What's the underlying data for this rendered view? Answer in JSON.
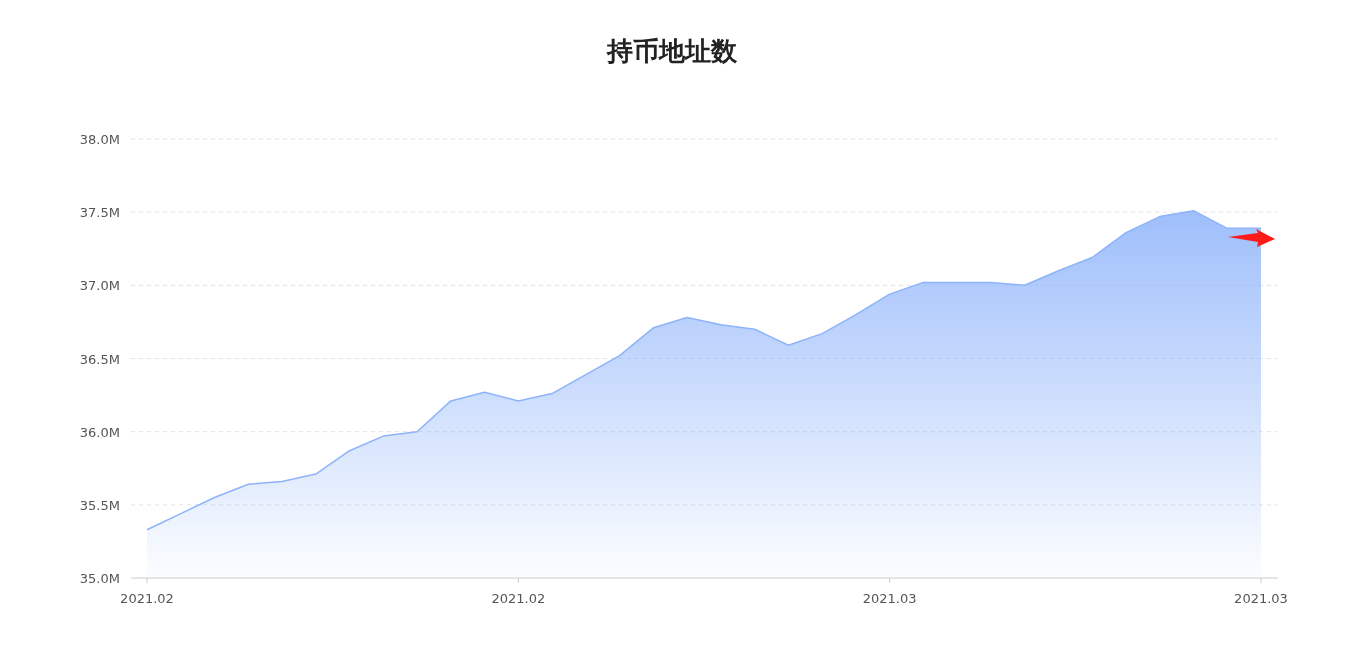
{
  "chart_data": {
    "type": "area",
    "title": "持币地址数",
    "categories": [
      "2021.02",
      null,
      null,
      null,
      null,
      null,
      null,
      null,
      null,
      null,
      null,
      "2021.02",
      null,
      null,
      null,
      null,
      null,
      null,
      null,
      null,
      null,
      null,
      "2021.03",
      null,
      null,
      null,
      null,
      null,
      null,
      null,
      null,
      null,
      null,
      "2021.03"
    ],
    "series": [
      {
        "color": "#8db3fa",
        "values": [
          35.33,
          35.44,
          35.55,
          35.64,
          35.66,
          35.71,
          35.87,
          35.97,
          36.0,
          36.21,
          36.27,
          36.21,
          36.26,
          36.39,
          36.52,
          36.71,
          36.78,
          36.73,
          36.7,
          36.59,
          36.67,
          36.8,
          36.94,
          37.02,
          37.02,
          37.02,
          37.0,
          37.1,
          37.19,
          37.36,
          37.47,
          37.51,
          37.39,
          37.39
        ]
      }
    ],
    "ylim": [
      35.0,
      38.0
    ],
    "yticks": [
      {
        "value": 35.0,
        "label": "35.0M"
      },
      {
        "value": 35.5,
        "label": "35.5M"
      },
      {
        "value": 36.0,
        "label": "36.0M"
      },
      {
        "value": 36.5,
        "label": "36.5M"
      },
      {
        "value": 37.0,
        "label": "37.0M"
      },
      {
        "value": 37.5,
        "label": "37.5M"
      },
      {
        "value": 38.0,
        "label": "38.0M"
      }
    ],
    "grid": "y"
  }
}
